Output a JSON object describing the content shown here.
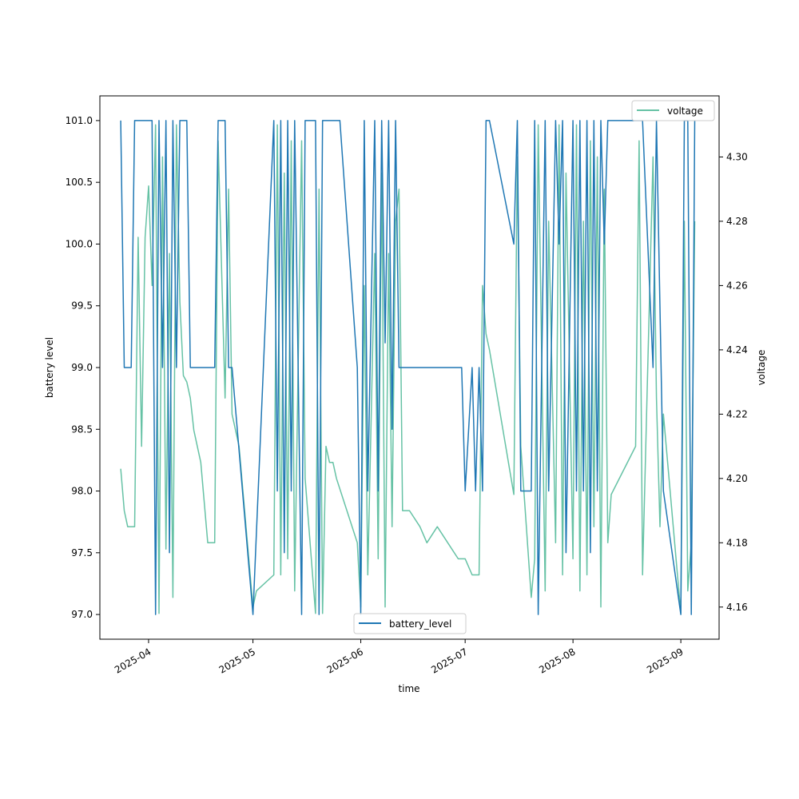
{
  "chart_data": {
    "type": "line",
    "title": "",
    "xlabel": "time",
    "ylabel": "battery level",
    "y2label": "voltage",
    "x_ticks": [
      "2025-04",
      "2025-05",
      "2025-06",
      "2025-07",
      "2025-08",
      "2025-09"
    ],
    "y_ticks": [
      "97.0",
      "97.5",
      "98.0",
      "98.5",
      "99.0",
      "99.5",
      "100.0",
      "100.5",
      "101.0"
    ],
    "y2_ticks": [
      "4.16",
      "4.18",
      "4.20",
      "4.22",
      "4.24",
      "4.26",
      "4.28",
      "4.30"
    ],
    "xlim": [
      "2025-03-18",
      "2025-09-12"
    ],
    "ylim": [
      96.8,
      101.2
    ],
    "y2lim": [
      4.15,
      4.319
    ],
    "grid": false,
    "legend_primary": "bottom-center",
    "legend_secondary": "top-right",
    "colors": {
      "battery_level": "#1f77b4",
      "voltage": "#66c2a5"
    },
    "series": [
      {
        "name": "battery_level",
        "axis": "left",
        "x": [
          "2025-03-24",
          "2025-03-25",
          "2025-03-27",
          "2025-03-28",
          "2025-04-02",
          "2025-04-03",
          "2025-04-04",
          "2025-04-05",
          "2025-04-06",
          "2025-04-07",
          "2025-04-08",
          "2025-04-09",
          "2025-04-10",
          "2025-04-11",
          "2025-04-12",
          "2025-04-13",
          "2025-04-20",
          "2025-04-21",
          "2025-04-23",
          "2025-04-24",
          "2025-04-25",
          "2025-05-01",
          "2025-05-01",
          "2025-05-07",
          "2025-05-08",
          "2025-05-09",
          "2025-05-10",
          "2025-05-11",
          "2025-05-12",
          "2025-05-13",
          "2025-05-15",
          "2025-05-16",
          "2025-05-19",
          "2025-05-20",
          "2025-05-21",
          "2025-05-22",
          "2025-05-23",
          "2025-05-26",
          "2025-05-31",
          "2025-06-01",
          "2025-06-02",
          "2025-06-03",
          "2025-06-05",
          "2025-06-06",
          "2025-06-07",
          "2025-06-08",
          "2025-06-09",
          "2025-06-10",
          "2025-06-11",
          "2025-06-12",
          "2025-06-13",
          "2025-06-30",
          "2025-07-01",
          "2025-07-03",
          "2025-07-04",
          "2025-07-05",
          "2025-07-06",
          "2025-07-07",
          "2025-07-08",
          "2025-07-15",
          "2025-07-16",
          "2025-07-17",
          "2025-07-20",
          "2025-07-21",
          "2025-07-22",
          "2025-07-24",
          "2025-07-25",
          "2025-07-27",
          "2025-07-28",
          "2025-07-29",
          "2025-07-30",
          "2025-08-01",
          "2025-08-02",
          "2025-08-03",
          "2025-08-04",
          "2025-08-05",
          "2025-08-06",
          "2025-08-07",
          "2025-08-08",
          "2025-08-09",
          "2025-08-10",
          "2025-08-11",
          "2025-08-12",
          "2025-08-19",
          "2025-08-21",
          "2025-08-24",
          "2025-08-25",
          "2025-08-27",
          "2025-09-01",
          "2025-09-02",
          "2025-09-03",
          "2025-09-04",
          "2025-09-05"
        ],
        "values": [
          101,
          99,
          99,
          101,
          101,
          97,
          101,
          99,
          101,
          97.5,
          101,
          99,
          101,
          101,
          101,
          99,
          99,
          101,
          101,
          99,
          99,
          97,
          97,
          101,
          98,
          101,
          97.5,
          101,
          98,
          101,
          97,
          101,
          101,
          97,
          101,
          101,
          101,
          101,
          99,
          97,
          101,
          98,
          101,
          98,
          101,
          99.2,
          101,
          98.5,
          101,
          99,
          99,
          99,
          98,
          99,
          98,
          99,
          98,
          101,
          101,
          100,
          101,
          98,
          98,
          101,
          97,
          101,
          98,
          101,
          100,
          101,
          97.5,
          101,
          98,
          101,
          98,
          101,
          97.5,
          101,
          98,
          101,
          100,
          101,
          101,
          101,
          101,
          99,
          101,
          98,
          97,
          101,
          101,
          97,
          101
        ]
      },
      {
        "name": "voltage",
        "axis": "right",
        "x": [
          "2025-03-24",
          "2025-03-25",
          "2025-03-26",
          "2025-03-27",
          "2025-03-28",
          "2025-03-29",
          "2025-03-30",
          "2025-03-31",
          "2025-04-01",
          "2025-04-02",
          "2025-04-03",
          "2025-04-04",
          "2025-04-05",
          "2025-04-06",
          "2025-04-07",
          "2025-04-08",
          "2025-04-09",
          "2025-04-10",
          "2025-04-11",
          "2025-04-12",
          "2025-04-13",
          "2025-04-14",
          "2025-04-16",
          "2025-04-18",
          "2025-04-20",
          "2025-04-21",
          "2025-04-23",
          "2025-04-24",
          "2025-04-25",
          "2025-04-27",
          "2025-05-01",
          "2025-05-02",
          "2025-05-07",
          "2025-05-08",
          "2025-05-09",
          "2025-05-10",
          "2025-05-11",
          "2025-05-12",
          "2025-05-13",
          "2025-05-15",
          "2025-05-16",
          "2025-05-19",
          "2025-05-20",
          "2025-05-21",
          "2025-05-22",
          "2025-05-23",
          "2025-05-24",
          "2025-05-25",
          "2025-05-31",
          "2025-06-01",
          "2025-06-02",
          "2025-06-03",
          "2025-06-05",
          "2025-06-06",
          "2025-06-07",
          "2025-06-08",
          "2025-06-09",
          "2025-06-10",
          "2025-06-11",
          "2025-06-12",
          "2025-06-13",
          "2025-06-15",
          "2025-06-18",
          "2025-06-20",
          "2025-06-23",
          "2025-06-26",
          "2025-06-29",
          "2025-07-01",
          "2025-07-03",
          "2025-07-05",
          "2025-07-06",
          "2025-07-07",
          "2025-07-08",
          "2025-07-15",
          "2025-07-16",
          "2025-07-17",
          "2025-07-20",
          "2025-07-21",
          "2025-07-22",
          "2025-07-24",
          "2025-07-25",
          "2025-07-27",
          "2025-07-28",
          "2025-07-29",
          "2025-07-30",
          "2025-08-01",
          "2025-08-02",
          "2025-08-03",
          "2025-08-04",
          "2025-08-05",
          "2025-08-06",
          "2025-08-07",
          "2025-08-08",
          "2025-08-09",
          "2025-08-10",
          "2025-08-11",
          "2025-08-12",
          "2025-08-19",
          "2025-08-20",
          "2025-08-21",
          "2025-08-24",
          "2025-08-25",
          "2025-08-26",
          "2025-08-27",
          "2025-09-01",
          "2025-09-02",
          "2025-09-03",
          "2025-09-04",
          "2025-09-05"
        ],
        "values": [
          4.203,
          4.19,
          4.185,
          4.185,
          4.185,
          4.275,
          4.21,
          4.275,
          4.291,
          4.26,
          4.31,
          4.158,
          4.3,
          4.178,
          4.27,
          4.163,
          4.31,
          4.255,
          4.232,
          4.23,
          4.225,
          4.215,
          4.205,
          4.18,
          4.18,
          4.305,
          4.225,
          4.29,
          4.22,
          4.21,
          4.16,
          4.165,
          4.17,
          4.31,
          4.17,
          4.295,
          4.175,
          4.305,
          4.165,
          4.305,
          4.2,
          4.158,
          4.29,
          4.158,
          4.21,
          4.205,
          4.205,
          4.2,
          4.18,
          4.16,
          4.26,
          4.17,
          4.27,
          4.175,
          4.295,
          4.16,
          4.27,
          4.185,
          4.28,
          4.29,
          4.19,
          4.19,
          4.185,
          4.18,
          4.185,
          4.18,
          4.175,
          4.175,
          4.17,
          4.17,
          4.26,
          4.245,
          4.24,
          4.195,
          4.3,
          4.21,
          4.163,
          4.175,
          4.31,
          4.165,
          4.28,
          4.18,
          4.31,
          4.17,
          4.295,
          4.175,
          4.31,
          4.165,
          4.28,
          4.17,
          4.305,
          4.185,
          4.3,
          4.16,
          4.29,
          4.18,
          4.195,
          4.21,
          4.305,
          4.17,
          4.3,
          4.225,
          4.185,
          4.22,
          4.158,
          4.28,
          4.165,
          4.18,
          4.28
        ]
      }
    ]
  }
}
